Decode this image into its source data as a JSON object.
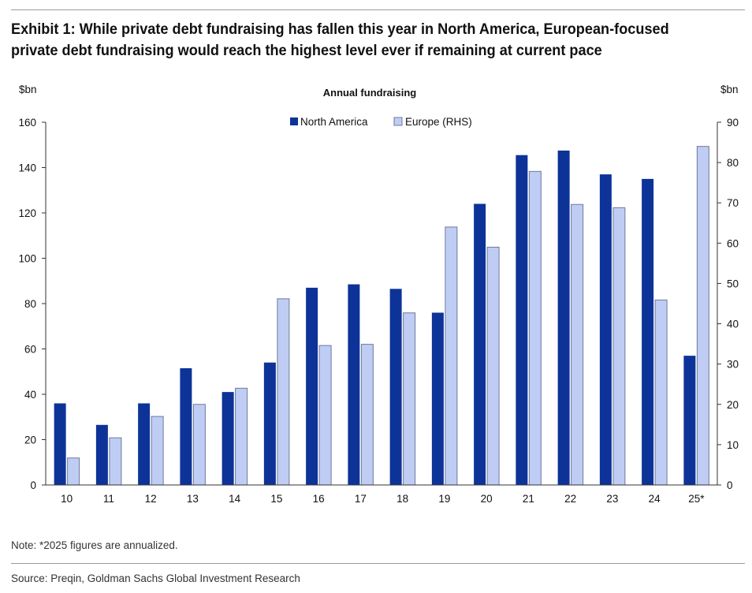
{
  "header": {
    "title": "Exhibit 1: While private debt fundraising has fallen this year in North America, European-focused private debt fundraising would reach the highest level ever if remaining at current pace"
  },
  "footer": {
    "note": "Note: *2025 figures are annualized.",
    "source": "Source: Preqin, Goldman Sachs Global Investment Research"
  },
  "colors": {
    "north_america": "#0d3399",
    "europe": "#bfcdf5",
    "europe_stroke": "#6d7a99",
    "axis": "#333333"
  },
  "chart_data": {
    "type": "bar",
    "title": "Annual fundraising",
    "ylabel_left": "$bn",
    "ylabel_right": "$bn",
    "categories": [
      "10",
      "11",
      "12",
      "13",
      "14",
      "15",
      "16",
      "17",
      "18",
      "19",
      "20",
      "21",
      "22",
      "23",
      "24",
      "25*"
    ],
    "ylim_left": [
      0,
      160
    ],
    "ylim_right": [
      0,
      90
    ],
    "yticks_left": [
      0,
      20,
      40,
      60,
      80,
      100,
      120,
      140,
      160
    ],
    "yticks_right": [
      0,
      10,
      20,
      30,
      40,
      50,
      60,
      70,
      80,
      90
    ],
    "legend_position": "top-center",
    "series": [
      {
        "name": "North America",
        "axis": "left",
        "values": [
          36,
          26.5,
          36,
          51.5,
          41,
          54,
          87,
          88.5,
          86.5,
          76,
          124,
          145.5,
          147.5,
          137,
          135,
          57
        ]
      },
      {
        "name": "Europe (RHS)",
        "axis": "right",
        "values": [
          6.7,
          11.7,
          17,
          20,
          24,
          46.2,
          34.6,
          34.9,
          42.7,
          64,
          59,
          77.8,
          69.6,
          68.8,
          45.9,
          84
        ]
      }
    ]
  }
}
